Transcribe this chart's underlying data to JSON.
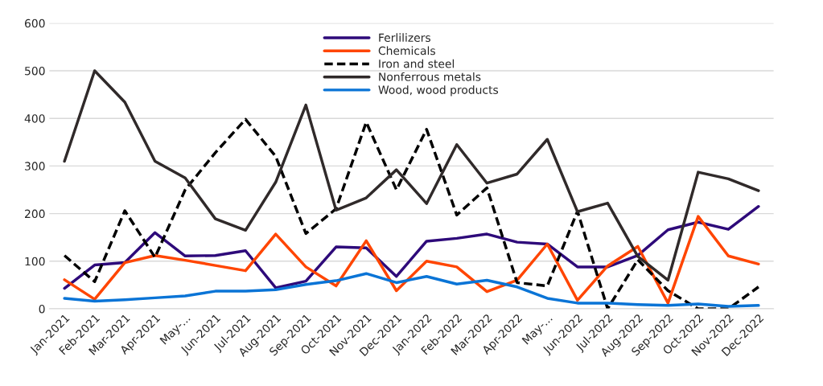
{
  "chart_data": {
    "type": "line",
    "categories": [
      "Jan-2021",
      "Feb-2021",
      "Mar-2021",
      "Apr-2021",
      "May-...",
      "Jun-2021",
      "Jul-2021",
      "Aug-2021",
      "Sep-2021",
      "Oct-2021",
      "Nov-2021",
      "Dec-2021",
      "Jan-2022",
      "Feb-2022",
      "Mar-2022",
      "Apr-2022",
      "May-...",
      "Jun-2022",
      "Jul-2022",
      "Aug-2022",
      "Sep-2022",
      "Oct-2022",
      "Nov-2022",
      "Dec-2022"
    ],
    "series": [
      {
        "name": "Ferlilizers",
        "color": "#2e0a7a",
        "values": [
          43,
          92,
          97,
          160,
          111,
          112,
          122,
          44,
          58,
          130,
          128,
          68,
          142,
          148,
          157,
          140,
          136,
          88,
          88,
          112,
          166,
          182,
          167,
          215
        ]
      },
      {
        "name": "Chemicals",
        "color": "#ff4500",
        "values": [
          61,
          20,
          97,
          112,
          102,
          91,
          80,
          157,
          88,
          48,
          143,
          38,
          100,
          88,
          36,
          60,
          136,
          18,
          90,
          131,
          12,
          194,
          111,
          94
        ]
      },
      {
        "name": "Iron and steel",
        "color": "#000000",
        "line_style": "dashed",
        "values": [
          112,
          57,
          206,
          108,
          250,
          328,
          398,
          320,
          158,
          210,
          392,
          250,
          377,
          197,
          254,
          55,
          48,
          205,
          0,
          103,
          38,
          0,
          0,
          46
        ]
      },
      {
        "name": "Nonferrous metals",
        "color": "#302a2a",
        "values": [
          310,
          500,
          434,
          310,
          275,
          189,
          165,
          266,
          428,
          207,
          233,
          292,
          221,
          345,
          264,
          283,
          356,
          204,
          222,
          110,
          60,
          287,
          273,
          248
        ]
      },
      {
        "name": "Wood, wood products",
        "color": "#0a74d6",
        "values": [
          22,
          16,
          19,
          23,
          27,
          37,
          37,
          40,
          51,
          59,
          74,
          55,
          68,
          52,
          60,
          46,
          22,
          12,
          12,
          9,
          7,
          10,
          5,
          7
        ]
      }
    ],
    "ylim": [
      0,
      600
    ],
    "yticks": [
      0,
      100,
      200,
      300,
      400,
      500,
      600
    ],
    "grid": "y",
    "legend": "top"
  }
}
